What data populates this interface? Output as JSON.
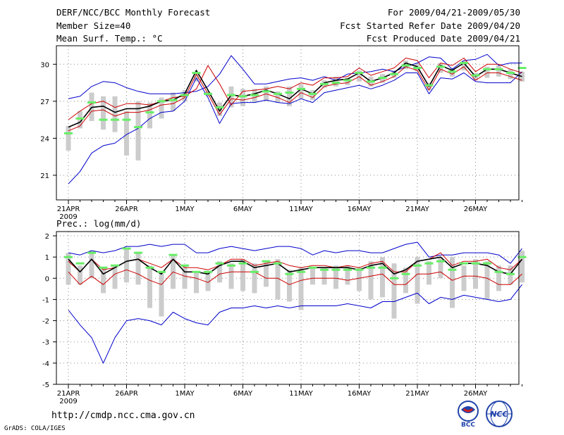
{
  "header": {
    "title": "DERF/NCC/BCC Monthly Forecast",
    "member_size": "Member Size=40",
    "variable": "Mean Surf. Temp.: °C",
    "forecast_period": "For 2009/04/21-2009/05/30",
    "started_refer": "Fcst Started Refer Date 2009/04/20",
    "produced": "Fcst Produced Date 2009/04/21"
  },
  "footer": {
    "url": "http://cmdp.ncc.cma.gov.cn",
    "credit": "GrADS: COLA/IGES",
    "logo_bcc": "BCC",
    "logo_ncc": "NCC"
  },
  "colors": {
    "mean": "#000000",
    "median_band": "#cc0000",
    "envelope": "#0000cc",
    "member_box": "#cccccc",
    "observed": "#66ee66",
    "grid": "#888888"
  },
  "chart_data": [
    {
      "type": "line",
      "title": "Mean Surf. Temp.: °C",
      "x_tick_labels": [
        "21APR",
        "26APR",
        "1MAY",
        "6MAY",
        "11MAY",
        "16MAY",
        "21MAY",
        "26MAY"
      ],
      "x_year_label": "2009",
      "days": 40,
      "ylim": [
        19,
        31.5
      ],
      "yticks": [
        21,
        24,
        27,
        30
      ],
      "series": [
        {
          "name": "max",
          "values": [
            27.2,
            27.4,
            28.2,
            28.6,
            28.5,
            28.1,
            27.8,
            27.6,
            27.6,
            27.6,
            27.7,
            27.8,
            28.2,
            29.2,
            30.7,
            29.6,
            28.4,
            28.4,
            28.6,
            28.8,
            28.9,
            28.7,
            29.0,
            28.7,
            29.2,
            29.3,
            29.4,
            29.6,
            29.4,
            29.8,
            30.1,
            30.6,
            30.5,
            29.6,
            30.3,
            30.4,
            30.8,
            29.9,
            30.1,
            30.1
          ]
        },
        {
          "name": "upper",
          "values": [
            25.5,
            26.2,
            26.8,
            27.0,
            26.5,
            26.8,
            26.8,
            26.7,
            27.0,
            27.3,
            27.4,
            28.0,
            29.9,
            28.4,
            26.7,
            27.8,
            27.9,
            28.0,
            28.2,
            28.0,
            28.5,
            28.3,
            28.9,
            28.9,
            29.0,
            29.7,
            29.1,
            29.4,
            29.7,
            30.5,
            30.3,
            28.9,
            30.1,
            29.9,
            30.5,
            29.4,
            30.0,
            30.0,
            29.6,
            29.3
          ]
        },
        {
          "name": "mean",
          "values": [
            24.9,
            25.3,
            26.5,
            26.6,
            26.1,
            26.4,
            26.4,
            26.6,
            27.0,
            27.1,
            27.6,
            29.5,
            27.9,
            26.2,
            27.5,
            27.4,
            27.6,
            27.9,
            27.6,
            27.2,
            28.0,
            27.6,
            28.5,
            28.7,
            28.8,
            29.3,
            28.6,
            28.9,
            29.3,
            30.1,
            29.8,
            28.2,
            29.9,
            29.5,
            30.1,
            29.0,
            29.6,
            29.6,
            29.3,
            29.0
          ]
        },
        {
          "name": "lower",
          "values": [
            24.6,
            25.0,
            26.2,
            26.3,
            25.8,
            26.1,
            26.1,
            26.3,
            26.7,
            26.8,
            27.3,
            29.2,
            27.6,
            25.9,
            27.2,
            27.1,
            27.3,
            27.6,
            27.3,
            26.9,
            27.7,
            27.3,
            28.2,
            28.4,
            28.5,
            29.0,
            28.3,
            28.6,
            29.0,
            29.8,
            29.5,
            27.9,
            29.6,
            29.2,
            29.8,
            28.7,
            29.3,
            29.3,
            29.0,
            28.7
          ]
        },
        {
          "name": "min",
          "values": [
            20.3,
            21.3,
            22.8,
            23.4,
            23.6,
            24.3,
            24.8,
            25.6,
            26.1,
            26.2,
            27.0,
            28.9,
            27.3,
            25.2,
            26.8,
            26.9,
            26.9,
            27.1,
            26.9,
            26.8,
            27.2,
            26.9,
            27.7,
            27.9,
            28.1,
            28.3,
            28.0,
            28.3,
            28.7,
            29.3,
            29.3,
            27.6,
            28.9,
            28.8,
            29.3,
            28.6,
            28.5,
            28.5,
            28.5,
            29.4
          ]
        },
        {
          "name": "box_top",
          "values": [
            25.0,
            26.2,
            27.7,
            27.4,
            27.4,
            26.2,
            27.0,
            26.9,
            27.3,
            27.7,
            27.9,
            29.3,
            27.8,
            26.9,
            28.2,
            28.0,
            28.0,
            28.2,
            27.8,
            28.2,
            28.4,
            27.9,
            28.7,
            29.0,
            28.9,
            29.5,
            29.0,
            29.2,
            29.5,
            30.3,
            30.1,
            28.5,
            30.1,
            29.7,
            30.3,
            29.3,
            29.8,
            29.9,
            29.6,
            29.4
          ]
        },
        {
          "name": "box_bottom",
          "values": [
            23.0,
            24.8,
            25.4,
            24.7,
            24.5,
            22.6,
            22.2,
            24.8,
            25.6,
            26.2,
            27.0,
            28.6,
            27.4,
            25.8,
            26.5,
            26.6,
            26.9,
            27.0,
            26.9,
            26.6,
            27.2,
            27.1,
            28.1,
            28.2,
            28.3,
            28.6,
            28.2,
            28.5,
            28.9,
            29.6,
            29.4,
            27.9,
            29.3,
            29.0,
            29.5,
            28.7,
            28.9,
            29.0,
            28.8,
            28.6
          ]
        },
        {
          "name": "observed",
          "values": [
            24.4,
            25.6,
            26.9,
            25.5,
            25.5,
            25.5,
            24.9,
            26.1,
            27.0,
            27.1,
            27.5,
            29.3,
            27.6,
            26.5,
            27.5,
            27.4,
            27.5,
            27.8,
            27.6,
            27.7,
            28.0,
            27.6,
            28.4,
            28.5,
            28.7,
            29.3,
            28.6,
            28.9,
            29.2,
            29.9,
            29.7,
            28.3,
            29.8,
            29.4,
            30.1,
            29.1,
            29.6,
            29.6,
            29.3,
            29.7
          ]
        }
      ]
    },
    {
      "type": "line",
      "title": "Prec.: log(mm/d)",
      "x_tick_labels": [
        "21APR",
        "26APR",
        "1MAY",
        "6MAY",
        "11MAY",
        "16MAY",
        "21MAY",
        "26MAY"
      ],
      "x_year_label": "2009",
      "days": 40,
      "ylim": [
        -5,
        2.2
      ],
      "yticks": [
        -5,
        -4,
        -3,
        -2,
        -1,
        0,
        1,
        2
      ],
      "series": [
        {
          "name": "max",
          "values": [
            1.2,
            1.1,
            1.3,
            1.2,
            1.3,
            1.5,
            1.5,
            1.6,
            1.5,
            1.6,
            1.6,
            1.2,
            1.2,
            1.4,
            1.5,
            1.4,
            1.3,
            1.4,
            1.5,
            1.5,
            1.4,
            1.1,
            1.3,
            1.2,
            1.3,
            1.3,
            1.2,
            1.2,
            1.4,
            1.6,
            1.7,
            1.0,
            1.1,
            1.1,
            1.2,
            1.2,
            1.2,
            1.1,
            0.7,
            1.4
          ]
        },
        {
          "name": "upper",
          "values": [
            0.8,
            0.3,
            0.9,
            0.4,
            0.5,
            0.8,
            0.9,
            0.7,
            0.5,
            0.9,
            0.5,
            0.5,
            0.4,
            0.6,
            0.9,
            0.9,
            0.6,
            0.7,
            0.8,
            0.6,
            0.5,
            0.6,
            0.6,
            0.5,
            0.6,
            0.5,
            0.7,
            0.8,
            0.3,
            0.3,
            0.8,
            0.9,
            1.2,
            0.6,
            0.8,
            0.8,
            0.9,
            0.5,
            0.4,
            0.9
          ]
        },
        {
          "name": "mean",
          "values": [
            0.9,
            0.3,
            0.9,
            0.2,
            0.5,
            0.8,
            0.9,
            0.5,
            0.2,
            0.9,
            0.3,
            0.3,
            0.2,
            0.6,
            0.8,
            0.8,
            0.5,
            0.6,
            0.7,
            0.3,
            0.4,
            0.5,
            0.5,
            0.5,
            0.5,
            0.4,
            0.6,
            0.7,
            0.2,
            0.4,
            0.8,
            0.9,
            1.0,
            0.5,
            0.7,
            0.7,
            0.6,
            0.3,
            0.2,
            0.9
          ]
        },
        {
          "name": "lower",
          "values": [
            0.3,
            -0.3,
            0.1,
            -0.3,
            0.2,
            0.4,
            0.2,
            -0.1,
            -0.3,
            0.3,
            0.1,
            0.0,
            -0.2,
            0.2,
            0.3,
            0.3,
            0.3,
            0.0,
            0.0,
            -0.3,
            -0.1,
            0.0,
            0.0,
            0.0,
            -0.1,
            0.0,
            0.1,
            0.2,
            -0.3,
            -0.3,
            0.2,
            0.2,
            0.3,
            -0.1,
            0.1,
            0.1,
            0.0,
            -0.3,
            -0.3,
            0.2
          ]
        },
        {
          "name": "min",
          "values": [
            -1.5,
            -2.2,
            -2.8,
            -4.0,
            -2.8,
            -2.0,
            -1.9,
            -2.0,
            -2.2,
            -1.6,
            -1.9,
            -2.1,
            -2.2,
            -1.6,
            -1.4,
            -1.4,
            -1.3,
            -1.4,
            -1.3,
            -1.4,
            -1.3,
            -1.3,
            -1.3,
            -1.3,
            -1.2,
            -1.3,
            -1.4,
            -1.1,
            -1.1,
            -0.9,
            -0.7,
            -1.2,
            -0.9,
            -1.0,
            -0.8,
            -0.9,
            -1.0,
            -1.1,
            -1.0,
            -0.3
          ]
        },
        {
          "name": "box_top",
          "values": [
            1.2,
            0.6,
            1.3,
            0.5,
            0.6,
            1.4,
            1.2,
            0.6,
            0.3,
            1.1,
            0.6,
            0.3,
            0.3,
            0.8,
            0.7,
            0.9,
            0.7,
            0.8,
            0.9,
            0.4,
            0.5,
            0.5,
            0.5,
            0.6,
            0.6,
            0.5,
            0.8,
            1.0,
            0.7,
            0.5,
            1.0,
            0.8,
            1.0,
            1.0,
            0.6,
            0.9,
            0.8,
            0.6,
            0.6,
            1.3
          ]
        },
        {
          "name": "box_bottom",
          "values": [
            -0.3,
            -0.3,
            0.0,
            -0.7,
            -0.5,
            -0.2,
            -0.3,
            -1.4,
            -1.8,
            -0.5,
            -0.5,
            -0.7,
            -0.6,
            -0.2,
            -0.5,
            -0.6,
            -0.7,
            -0.4,
            -1.0,
            -1.1,
            -1.5,
            -0.3,
            -0.3,
            -0.5,
            -0.3,
            -0.6,
            -1.0,
            -0.9,
            -1.9,
            -0.7,
            -1.2,
            -0.3,
            0.0,
            -1.4,
            -0.6,
            -0.5,
            -1.0,
            -0.6,
            -0.3,
            -0.2
          ]
        },
        {
          "name": "observed",
          "values": [
            1.0,
            0.7,
            1.2,
            0.5,
            0.6,
            1.4,
            1.2,
            0.5,
            0.3,
            1.1,
            0.6,
            0.3,
            0.3,
            0.7,
            0.6,
            0.7,
            0.3,
            0.8,
            0.7,
            0.2,
            0.3,
            0.5,
            0.4,
            0.4,
            0.4,
            0.4,
            0.5,
            0.5,
            0.0,
            0.2,
            0.6,
            0.7,
            0.8,
            0.4,
            0.7,
            0.7,
            0.7,
            0.3,
            0.2,
            1.0
          ]
        }
      ]
    }
  ]
}
